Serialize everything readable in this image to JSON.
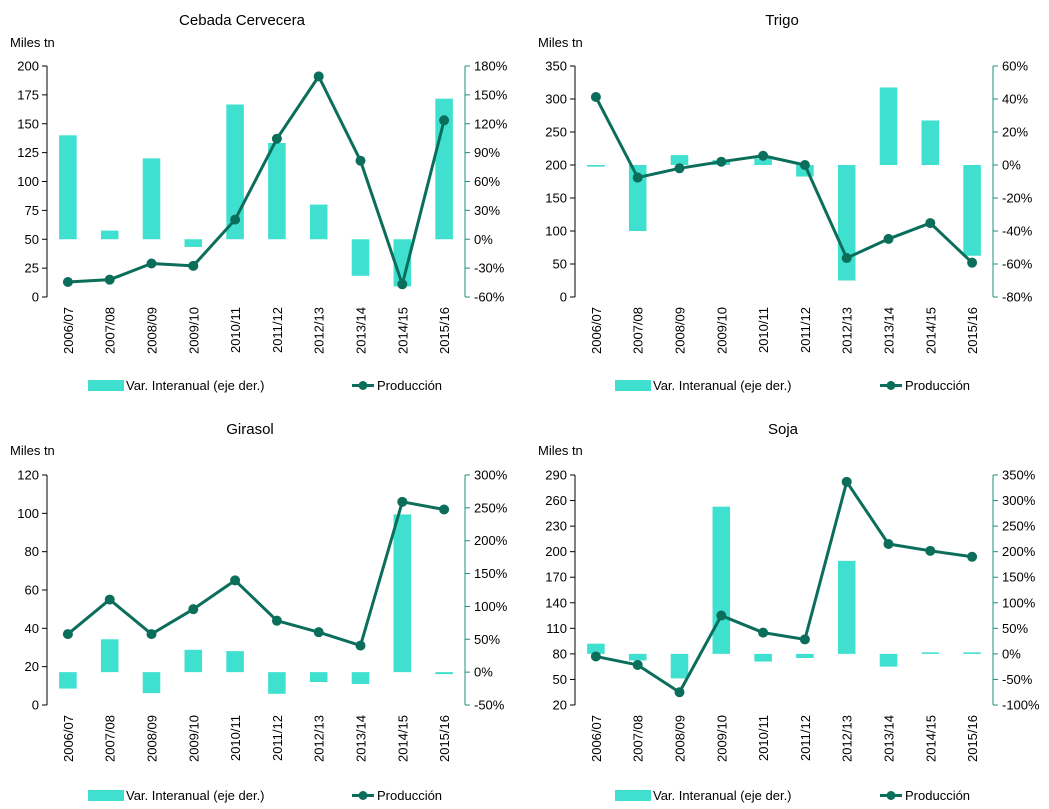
{
  "colors": {
    "bar": "#40E0D0",
    "line": "#0B6E5A",
    "axis": "#000000",
    "right_axis": "#1D8F7C"
  },
  "chart_data": [
    {
      "type": "bar+line",
      "title": "Cebada Cervecera",
      "ylabel": "Miles tn",
      "categories": [
        "2006/07",
        "2007/08",
        "2008/09",
        "2009/10",
        "2010/11",
        "2011/12",
        "2012/13",
        "2013/14",
        "2014/15",
        "2015/16"
      ],
      "left_ticks": [
        "0",
        "25",
        "50",
        "75",
        "100",
        "125",
        "150",
        "175",
        "200"
      ],
      "right_ticks": [
        "-60%",
        "-30%",
        "0%",
        "30%",
        "60%",
        "90%",
        "120%",
        "150%",
        "180%"
      ],
      "ylim": [
        0,
        200
      ],
      "y2lim": [
        -60,
        180
      ],
      "series": [
        {
          "name": "Var. Interanual (eje der.)",
          "type": "bar",
          "axis": "right",
          "values": [
            108,
            9,
            84,
            -8,
            140,
            100,
            36,
            -38,
            -49,
            146
          ]
        },
        {
          "name": "Producción",
          "type": "line",
          "axis": "left",
          "values": [
            13,
            15,
            29,
            27,
            67,
            137,
            191,
            118,
            11,
            153
          ]
        }
      ],
      "legend": "bottom"
    },
    {
      "type": "bar+line",
      "title": "Trigo",
      "ylabel": "Miles tn",
      "categories": [
        "2006/07",
        "2007/08",
        "2008/09",
        "2009/10",
        "2010/11",
        "2011/12",
        "2012/13",
        "2013/14",
        "2014/15",
        "2015/16"
      ],
      "left_ticks": [
        "0",
        "50",
        "100",
        "150",
        "200",
        "250",
        "300",
        "350"
      ],
      "right_ticks": [
        "-80%",
        "-60%",
        "-40%",
        "-20%",
        "0%",
        "20%",
        "40%",
        "60%"
      ],
      "ylim": [
        0,
        350
      ],
      "y2lim": [
        -80,
        60
      ],
      "series": [
        {
          "name": "Var. Interanual (eje der.)",
          "type": "bar",
          "axis": "right",
          "values": [
            -1,
            -40,
            6,
            3,
            4,
            -7,
            -70,
            47,
            27,
            -55
          ]
        },
        {
          "name": "Producción",
          "type": "line",
          "axis": "left",
          "values": [
            303,
            181,
            195,
            205,
            214,
            200,
            59,
            88,
            112,
            52
          ]
        }
      ],
      "legend": "bottom"
    },
    {
      "type": "bar+line",
      "title": "Girasol",
      "ylabel": "Miles tn",
      "categories": [
        "2006/07",
        "2007/08",
        "2008/09",
        "2009/10",
        "2010/11",
        "2011/12",
        "2012/13",
        "2013/14",
        "2014/15",
        "2015/16"
      ],
      "left_ticks": [
        "0",
        "20",
        "40",
        "60",
        "80",
        "100",
        "120"
      ],
      "right_ticks": [
        "-50%",
        "0%",
        "50%",
        "100%",
        "150%",
        "200%",
        "250%",
        "300%"
      ],
      "ylim": [
        0,
        120
      ],
      "y2lim": [
        -50,
        300
      ],
      "series": [
        {
          "name": "Var. Interanual (eje der.)",
          "type": "bar",
          "axis": "right",
          "values": [
            -25,
            50,
            -32,
            34,
            32,
            -33,
            -15,
            -18,
            240,
            -3
          ]
        },
        {
          "name": "Producción",
          "type": "line",
          "axis": "left",
          "values": [
            37,
            55,
            37,
            50,
            65,
            44,
            38,
            31,
            106,
            102
          ]
        }
      ],
      "legend": "bottom"
    },
    {
      "type": "bar+line",
      "title": "Soja",
      "ylabel": "Miles tn",
      "categories": [
        "2006/07",
        "2007/08",
        "2008/09",
        "2009/10",
        "2010/11",
        "2011/12",
        "2012/13",
        "2013/14",
        "2014/15",
        "2015/16"
      ],
      "left_ticks": [
        "20",
        "50",
        "80",
        "110",
        "140",
        "170",
        "200",
        "230",
        "260",
        "290"
      ],
      "right_ticks": [
        "-100%",
        "-50%",
        "0%",
        "50%",
        "100%",
        "150%",
        "200%",
        "250%",
        "300%",
        "350%"
      ],
      "ylim": [
        20,
        290
      ],
      "y2lim": [
        -100,
        350
      ],
      "series": [
        {
          "name": "Var. Interanual (eje der.)",
          "type": "bar",
          "axis": "right",
          "values": [
            20,
            -13,
            -48,
            288,
            -15,
            -8,
            182,
            -25,
            3,
            3
          ]
        },
        {
          "name": "Producción",
          "type": "line",
          "axis": "left",
          "values": [
            77,
            67,
            35,
            125,
            105,
            97,
            282,
            209,
            201,
            194
          ]
        }
      ],
      "legend": "bottom"
    }
  ]
}
